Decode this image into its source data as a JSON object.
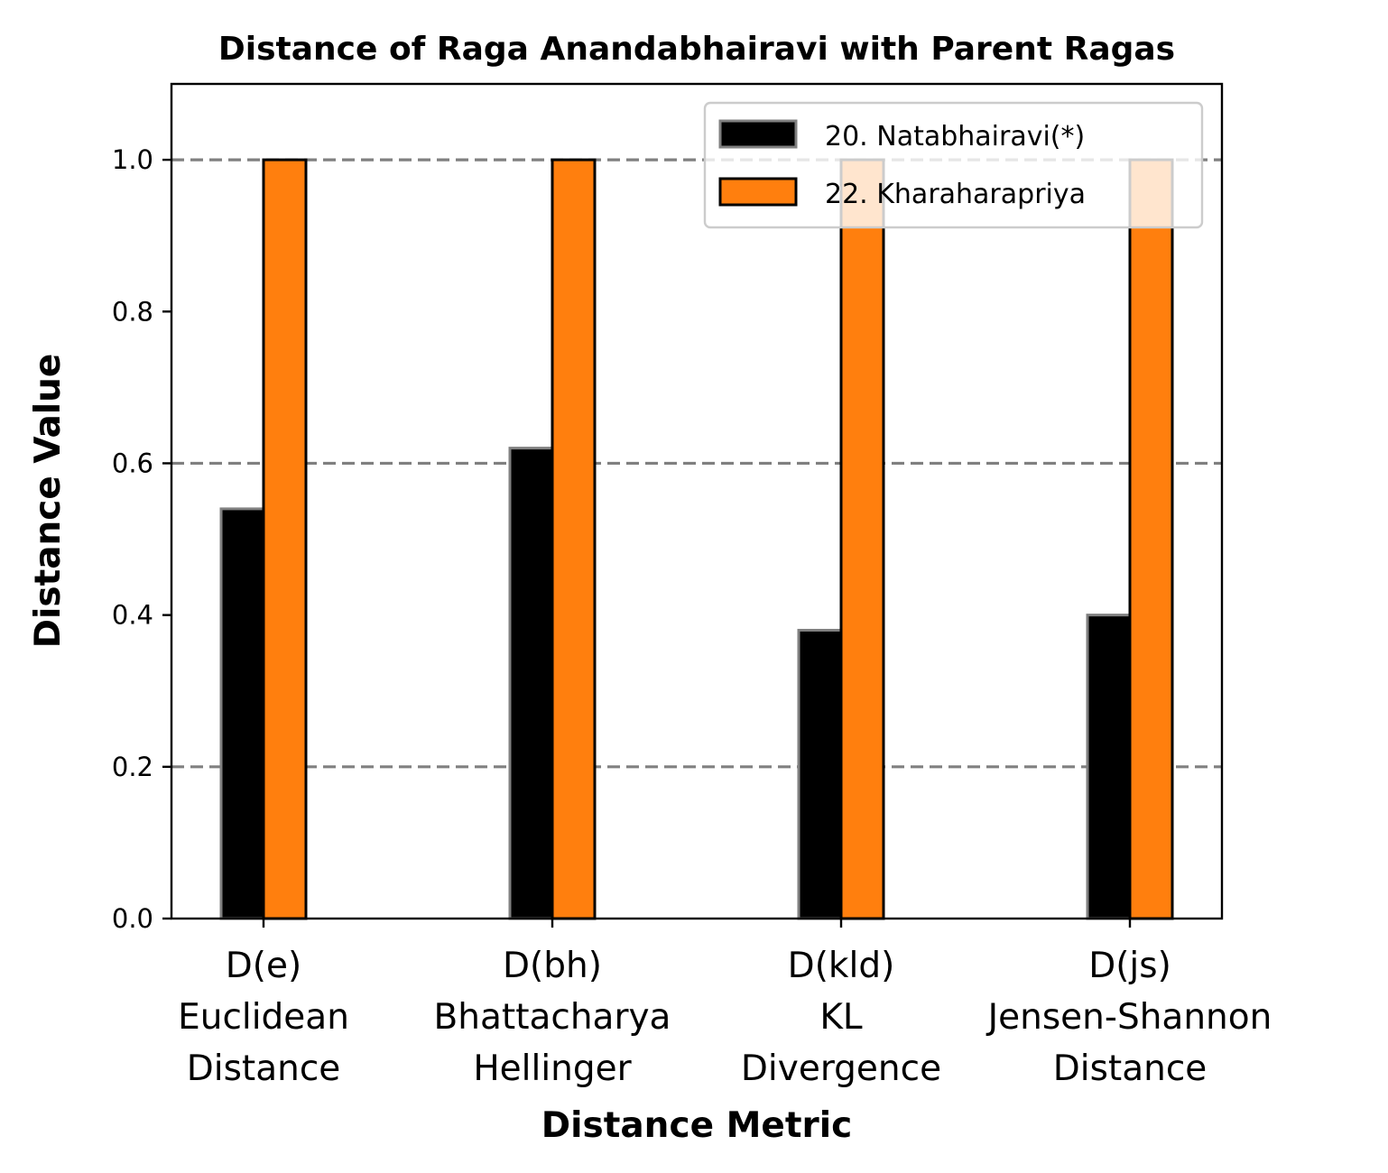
{
  "chart_data": {
    "type": "bar",
    "title": "Distance of Raga Anandabhairavi with Parent Ragas",
    "xlabel": "Distance Metric",
    "ylabel": "Distance Value",
    "categories": [
      [
        "D(e)",
        "Euclidean",
        "Distance"
      ],
      [
        "D(bh)",
        "Bhattacharya",
        "Hellinger"
      ],
      [
        "D(kld)",
        "KL",
        "Divergence"
      ],
      [
        "D(js)",
        "Jensen-Shannon",
        "Distance"
      ]
    ],
    "series": [
      {
        "name": "20. Natabhairavi(*)",
        "values": [
          0.54,
          0.62,
          0.38,
          0.4
        ],
        "color": "#000000",
        "edgecolor": "#808080"
      },
      {
        "name": "22. Kharaharapriya",
        "values": [
          1.0,
          1.0,
          1.0,
          1.0
        ],
        "color": "#ff7f0e",
        "edgecolor": "#000000"
      }
    ],
    "ylim": [
      0,
      1.1
    ],
    "yticks": [
      "0.0",
      "0.2",
      "0.4",
      "0.6",
      "0.8",
      "1.0"
    ],
    "grid": {
      "axis": "y",
      "at": [
        0.2,
        0.6,
        1.0
      ],
      "style": "dashed",
      "color": "#808080"
    },
    "legend": "top-right"
  }
}
